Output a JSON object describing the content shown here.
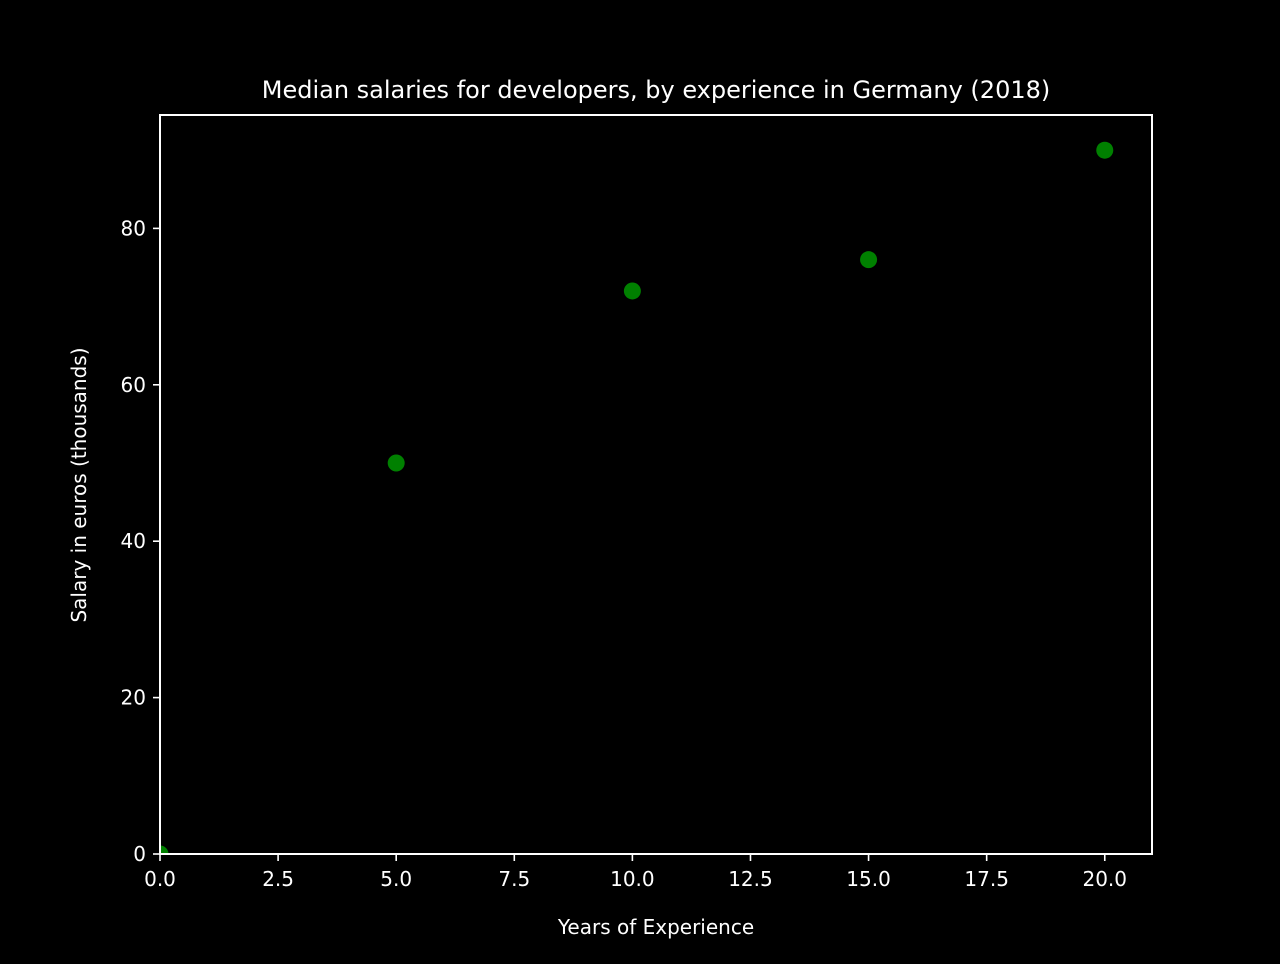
{
  "chart_data": {
    "type": "scatter",
    "title": "Median salaries for developers, by experience in Germany (2018)",
    "xlabel": "Years of Experience",
    "ylabel": "Salary in euros (thousands)",
    "xlim": [
      0,
      21
    ],
    "ylim": [
      0,
      94.5
    ],
    "x_ticks": [
      0,
      2.5,
      5,
      7.5,
      10,
      12.5,
      15,
      17.5,
      20
    ],
    "x_tick_labels": [
      "0.0",
      "2.5",
      "5.0",
      "7.5",
      "10.0",
      "12.5",
      "15.0",
      "17.5",
      "20.0"
    ],
    "y_ticks": [
      0,
      20,
      40,
      60,
      80
    ],
    "y_tick_labels": [
      "0",
      "20",
      "40",
      "60",
      "80"
    ],
    "grid": false,
    "series": [
      {
        "points": [
          {
            "x": 0,
            "y": 0
          },
          {
            "x": 5,
            "y": 50
          },
          {
            "x": 10,
            "y": 72
          },
          {
            "x": 15,
            "y": 76
          },
          {
            "x": 20,
            "y": 90
          }
        ],
        "color": "#008000"
      }
    ],
    "colors": {
      "background": "#000000",
      "axes": "#ffffff",
      "text": "#ffffff"
    }
  }
}
